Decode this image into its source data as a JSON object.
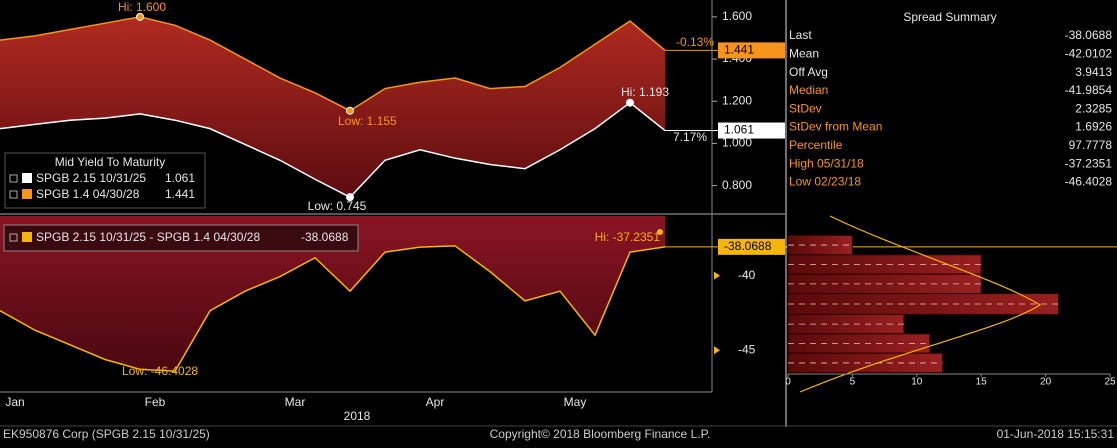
{
  "chart_data": [
    {
      "type": "line",
      "legend_title": "Mid Yield To Maturity",
      "series": [
        {
          "name": "SPGB 2.15 10/31/25",
          "color": "#ffffff",
          "values": [
            1.07,
            1.09,
            1.11,
            1.12,
            1.14,
            1.11,
            1.07,
            0.995,
            0.92,
            0.83,
            0.745,
            0.92,
            0.97,
            0.93,
            0.9,
            0.88,
            0.97,
            1.07,
            1.193,
            1.061
          ]
        },
        {
          "name": "SPGB 1.4 04/30/28",
          "color": "#f7941d",
          "values": [
            1.49,
            1.51,
            1.54,
            1.57,
            1.6,
            1.56,
            1.49,
            1.4,
            1.31,
            1.24,
            1.155,
            1.26,
            1.29,
            1.31,
            1.26,
            1.27,
            1.36,
            1.47,
            1.58,
            1.441
          ]
        }
      ],
      "ylim": [
        0.67,
        1.68
      ],
      "yticks": [
        {
          "value": 0.8,
          "label": "0.800"
        },
        {
          "value": 1.0,
          "label": "1.000"
        },
        {
          "value": 1.2,
          "label": "1.200"
        },
        {
          "value": 1.4,
          "label": "1.400"
        },
        {
          "value": 1.6,
          "label": "1.600"
        }
      ],
      "annotations": [
        "Hi: 1.600",
        "Low: 1.155",
        "Hi: 1.193",
        "Low: 0.745",
        "-0.13%",
        "7.17%"
      ]
    },
    {
      "type": "area",
      "categories": [
        "Jan",
        null,
        null,
        null,
        "Feb",
        null,
        null,
        null,
        "Mar",
        null,
        null,
        null,
        "Apr",
        null,
        null,
        null,
        "May",
        null,
        null,
        null
      ],
      "xlabel": "2018",
      "series": [
        {
          "name": "SPGB 2.15 10/31/25 - SPGB 1.4 04/30/28",
          "color": "#f5b50a",
          "values": [
            -42.35,
            -43.66,
            -44.64,
            -45.62,
            -46.28,
            -46.4028,
            -42.35,
            -41.04,
            -40.06,
            -38.8,
            -41.04,
            -38.42,
            -38.09,
            -38.0,
            -39.73,
            -41.69,
            -41.04,
            -43.99,
            -38.42,
            -38.0688
          ]
        }
      ],
      "ylim": [
        -47.8,
        -36
      ],
      "yticks": [
        -40,
        -45
      ],
      "annotations": [
        "Hi: -37.2351",
        "Low: -46.4028"
      ]
    },
    {
      "type": "histogram",
      "orientation": "horizontal",
      "bins": [
        -37.3,
        -38.6,
        -39.9,
        -41.2,
        -42.6,
        -43.9,
        -45.2,
        -46.5
      ],
      "values": [
        5,
        15,
        15,
        21,
        9,
        11,
        12
      ],
      "xlim": [
        0,
        25
      ],
      "xticks": [
        0,
        5,
        10,
        15,
        20,
        25
      ],
      "color": "#8b1a1a"
    }
  ],
  "summary": {
    "title": "Spread Summary",
    "rows": [
      [
        "Last",
        "-38.0688"
      ],
      [
        "Mean",
        "-42.0102"
      ],
      [
        "Off Avg",
        "3.9413"
      ],
      [
        "Median",
        "-41.9854"
      ],
      [
        "StDev",
        "2.3285"
      ],
      [
        "StDev from Mean",
        "1.6926"
      ],
      [
        "Percentile",
        "97.7778"
      ],
      [
        "High 05/31/18",
        "-37.2351"
      ],
      [
        "Low 02/23/18",
        "-46.4028"
      ]
    ]
  },
  "footer": {
    "left": "EK950876 Corp (SPGB 2.15 10/31/25)",
    "center": "Copyright© 2018 Bloomberg Finance L.P.",
    "right": "01-Jun-2018 15:15:31"
  }
}
